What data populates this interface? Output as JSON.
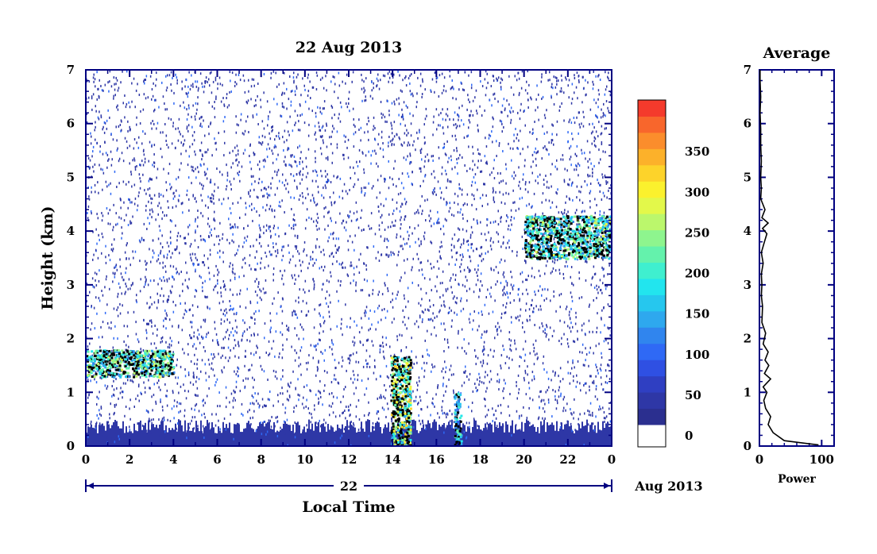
{
  "chart_data": [
    {
      "type": "heatmap",
      "title": "22 Aug 2013",
      "xlabel": "Local Time",
      "ylabel": "Height (km)",
      "date_bar": {
        "day": "22",
        "month_year": "Aug 2013"
      },
      "x_ticks": [
        "0",
        "2",
        "4",
        "6",
        "8",
        "10",
        "12",
        "14",
        "16",
        "18",
        "20",
        "22",
        "0"
      ],
      "y_ticks": [
        "0",
        "1",
        "2",
        "3",
        "4",
        "5",
        "6",
        "7"
      ],
      "xlim": [
        0,
        24
      ],
      "ylim": [
        0,
        7
      ],
      "colorbar": {
        "min": 0,
        "max": 375,
        "ticks": [
          "0",
          "50",
          "100",
          "150",
          "200",
          "250",
          "300",
          "350"
        ],
        "colors": [
          "#2b2f8f",
          "#2e37a6",
          "#2f3fc2",
          "#2f50e3",
          "#2f69f5",
          "#3085ee",
          "#2ea8ee",
          "#26c7ee",
          "#22e5ee",
          "#3fefcf",
          "#64f2ac",
          "#8ef58e",
          "#bbf76c",
          "#e3f84a",
          "#fbf12d",
          "#fdd32a",
          "#fcb12a",
          "#fb8d2c",
          "#f8662c",
          "#f43a2c"
        ]
      },
      "regions": [
        {
          "label": "dense low-level echo layer",
          "x": [
            0,
            24
          ],
          "height_km": [
            0,
            0.5
          ],
          "value": 20
        },
        {
          "label": "scattered clear-air echoes",
          "x": [
            0,
            24
          ],
          "height_km": [
            0,
            7
          ],
          "value": 10
        },
        {
          "label": "cloud layer",
          "x": [
            0,
            4
          ],
          "height_km": [
            1.3,
            1.8
          ],
          "value": 250
        },
        {
          "label": "cloud layer",
          "x": [
            20,
            24
          ],
          "height_km": [
            3.5,
            4.3
          ],
          "value": 250
        },
        {
          "label": "convective core",
          "x": [
            13.9,
            14.8
          ],
          "height_km": [
            0,
            1.7
          ],
          "value": 300
        },
        {
          "label": "convective core",
          "x": [
            16.8,
            17.1
          ],
          "height_km": [
            0,
            1.0
          ],
          "value": 200
        }
      ]
    },
    {
      "type": "line",
      "title": "Average",
      "xlabel": "Power",
      "ylabel": "",
      "x_ticks": [
        "0",
        "100"
      ],
      "y_ticks": [
        "0",
        "1",
        "2",
        "3",
        "4",
        "5",
        "6",
        "7"
      ],
      "xlim": [
        0,
        120
      ],
      "ylim": [
        0,
        7
      ],
      "series": [
        {
          "x": [
            95,
            40,
            22,
            14,
            18,
            10,
            7,
            12,
            6,
            18,
            8,
            15,
            9,
            14,
            6,
            10,
            4,
            5,
            3,
            4,
            3,
            6,
            3,
            8,
            12,
            5,
            14,
            4,
            9,
            2,
            3,
            2,
            3,
            2,
            2,
            1,
            2,
            1,
            1
          ],
          "y": [
            0.02,
            0.1,
            0.25,
            0.4,
            0.55,
            0.7,
            0.85,
            1.0,
            1.1,
            1.25,
            1.35,
            1.5,
            1.6,
            1.75,
            1.9,
            2.1,
            2.3,
            2.6,
            2.8,
            3.0,
            3.2,
            3.4,
            3.6,
            3.8,
            3.95,
            4.05,
            4.15,
            4.25,
            4.4,
            4.6,
            4.8,
            5.0,
            5.3,
            5.6,
            5.9,
            6.2,
            6.5,
            6.8,
            7.0
          ]
        }
      ]
    }
  ]
}
